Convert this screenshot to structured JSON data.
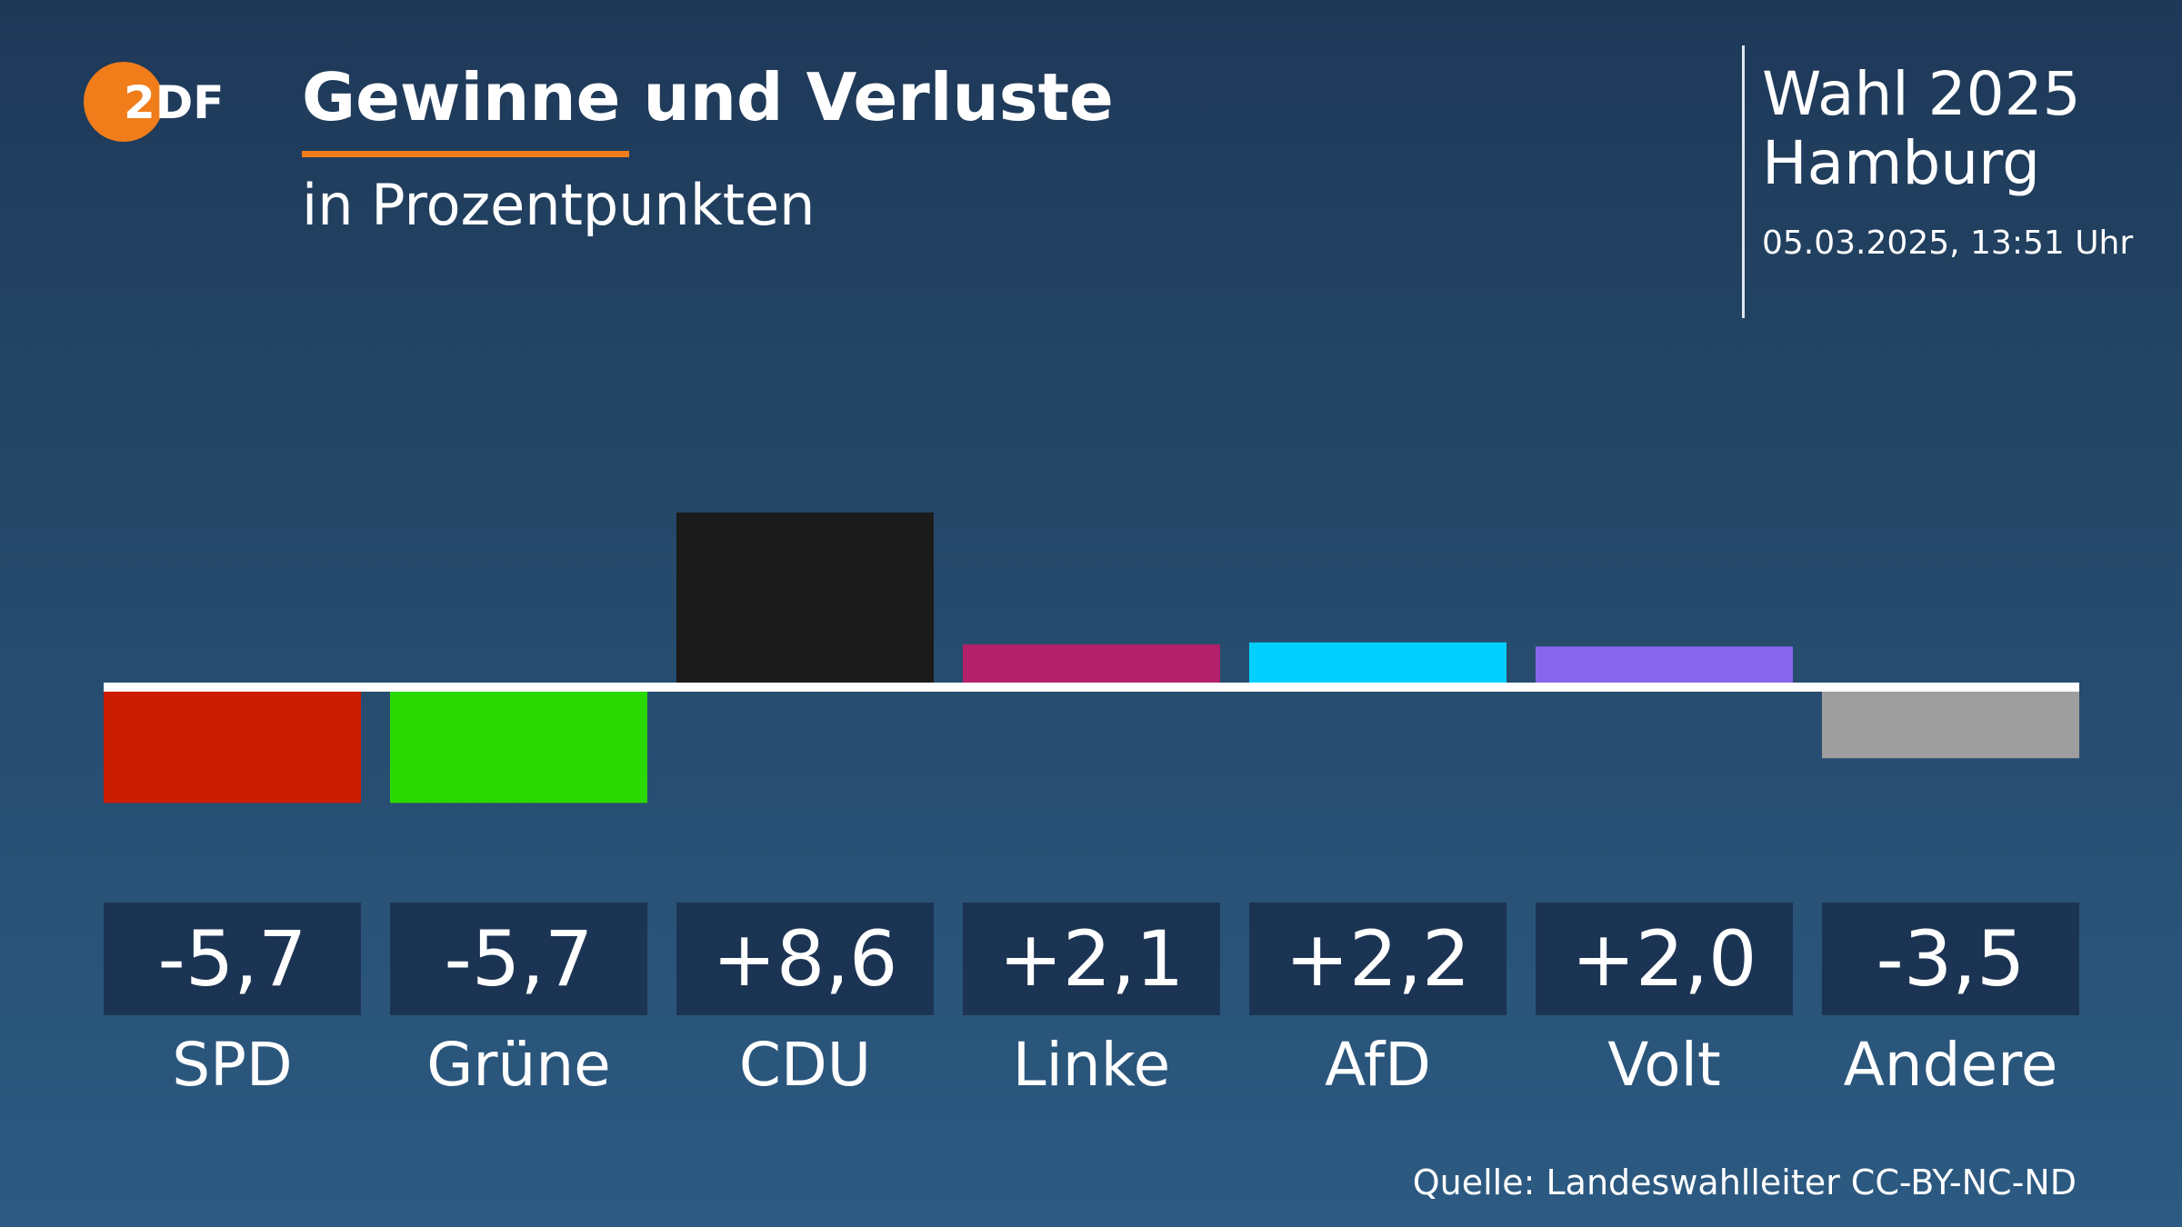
{
  "header": {
    "logo_text": "2DF",
    "title": "Gewinne und Verluste",
    "subtitle": "in Prozentpunkten",
    "election": "Wahl 2025",
    "region": "Hamburg",
    "timestamp": "05.03.2025, 13:51 Uhr"
  },
  "footer": {
    "source": "Quelle: Landeswahlleiter CC-BY-NC-ND"
  },
  "colors": {
    "accent": "#f07c1a",
    "value_box": "#1c3453",
    "baseline": "#ffffff"
  },
  "chart_data": {
    "type": "bar",
    "title": "Gewinne und Verluste",
    "subtitle": "in Prozentpunkten",
    "categories": [
      "SPD",
      "Grüne",
      "CDU",
      "Linke",
      "AfD",
      "Volt",
      "Andere"
    ],
    "values": [
      -5.7,
      -5.7,
      8.6,
      2.1,
      2.2,
      2.0,
      -3.5
    ],
    "value_labels": [
      "-5,7",
      "-5,7",
      "+8,6",
      "+2,1",
      "+2,2",
      "+2,0",
      "-3,5"
    ],
    "colors": [
      "#cc1d00",
      "#2ad900",
      "#1b1b1b",
      "#b41f6a",
      "#00d0ff",
      "#8667ee",
      "#9e9e9e"
    ],
    "ylim": [
      -5.7,
      8.6
    ],
    "grid": false,
    "legend": "none"
  }
}
